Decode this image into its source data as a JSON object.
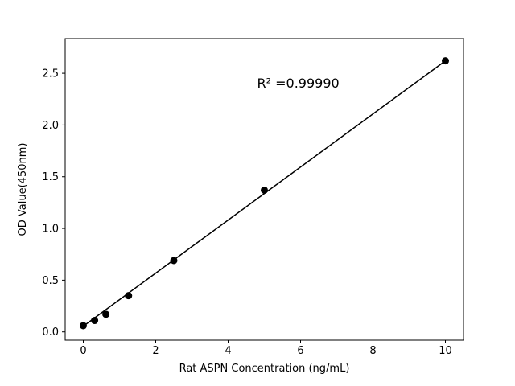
{
  "chart_data": {
    "type": "scatter",
    "title": "",
    "xlabel": "Rat ASPN Concentration (ng/mL)",
    "ylabel": "OD Value(450nm)",
    "x": [
      0,
      0.313,
      0.625,
      1.25,
      2.5,
      5,
      10
    ],
    "y": [
      0.06,
      0.11,
      0.17,
      0.35,
      0.69,
      1.37,
      2.62
    ],
    "line": {
      "x1": 0,
      "y1": 0.055,
      "x2": 10,
      "y2": 2.62
    },
    "annotation": {
      "text": "R² =0.99990",
      "x": 4.8,
      "y": 2.36
    },
    "r_squared": 0.9999,
    "xlim": [
      -0.5,
      10.5
    ],
    "ylim": [
      -0.08,
      2.835
    ],
    "x_ticks": [
      0,
      2,
      4,
      6,
      8,
      10
    ],
    "y_ticks": [
      0.0,
      0.5,
      1.0,
      1.5,
      2.0,
      2.5
    ],
    "grid": false,
    "legend": null,
    "marker_color": "#000000",
    "line_color": "#000000",
    "background": "#ffffff"
  }
}
